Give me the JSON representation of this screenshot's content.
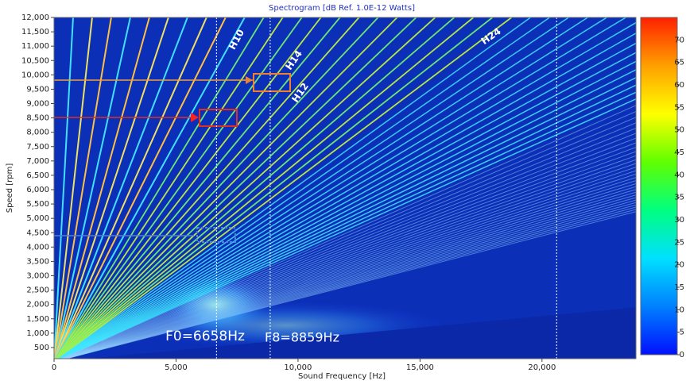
{
  "chart_data": {
    "type": "spectrogram",
    "title": "Spectrogram [dB Ref. 1.0E-12 Watts]",
    "x_label": "Sound Frequency [Hz]",
    "y_label": "Speed [rpm]",
    "xlim": [
      0,
      23850
    ],
    "xticks": [
      0,
      {
        "value": 5000,
        "label": "5,000"
      },
      {
        "value": 10000,
        "label": "10,000"
      },
      {
        "value": 15000,
        "label": "15,000"
      },
      {
        "value": 20000,
        "label": "20,000"
      }
    ],
    "ylim": [
      0,
      12000
    ],
    "yticks": [
      500,
      {
        "value": 1000,
        "label": "1,000"
      },
      {
        "value": 1500,
        "label": "1,500"
      },
      {
        "value": 2000,
        "label": "2,000"
      },
      {
        "value": 2500,
        "label": "2,500"
      },
      {
        "value": 3000,
        "label": "3,000"
      },
      {
        "value": 3500,
        "label": "3,500"
      },
      {
        "value": 4000,
        "label": "4,000"
      },
      {
        "value": 4500,
        "label": "4,500"
      },
      {
        "value": 5000,
        "label": "5,000"
      },
      {
        "value": 5500,
        "label": "5,500"
      },
      {
        "value": 6000,
        "label": "6,000"
      },
      {
        "value": 6500,
        "label": "6,500"
      },
      {
        "value": 7000,
        "label": "7,000"
      },
      {
        "value": 7500,
        "label": "7,500"
      },
      {
        "value": 8000,
        "label": "8,000"
      },
      {
        "value": 8500,
        "label": "8,500"
      },
      {
        "value": 9000,
        "label": "9,000"
      },
      {
        "value": 9500,
        "label": "9,500"
      },
      {
        "value": 10000,
        "label": "10,000"
      },
      {
        "value": 10500,
        "label": "10,500"
      },
      {
        "value": 11000,
        "label": "11,000"
      },
      {
        "value": 11500,
        "label": "11,500"
      },
      {
        "value": 12000,
        "label": "12,000"
      }
    ],
    "markers_x": [
      6658,
      8859,
      20600
    ],
    "annotations": [
      "H10",
      "H12",
      "H14",
      "H24",
      "F0=6658Hz",
      "F8=8859Hz"
    ],
    "colorbar": {
      "lim": [
        0,
        75
      ],
      "ticks": [
        0,
        5,
        10,
        15,
        20,
        25,
        30,
        35,
        40,
        45,
        50,
        55,
        60,
        65,
        70
      ],
      "colors": [
        "#0010ff",
        "#0080ff",
        "#00e0ff",
        "#00ff80",
        "#60ff00",
        "#ffff00",
        "#ffa000",
        "#ff2000"
      ]
    }
  }
}
